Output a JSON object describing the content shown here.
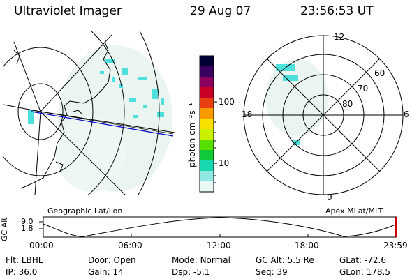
{
  "header": {
    "instrument": "Ultraviolet Imager",
    "date": "29 Aug 07",
    "time": "23:56:53 UT"
  },
  "colorbar": {
    "unit_label": "photon cm⁻²s⁻¹",
    "ticks": [
      "100",
      "10"
    ],
    "colors": [
      "#000033",
      "#3a0060",
      "#8c0060",
      "#c80028",
      "#e84010",
      "#f89a00",
      "#f8e000",
      "#c8f000",
      "#58e000",
      "#10c838",
      "#18d8b0",
      "#90e8e0",
      "#e8f8f4"
    ]
  },
  "map_left": {
    "caption": "Geographic Lat/Lon"
  },
  "polar_right": {
    "caption": "Apex MLat/MLT",
    "mlt_labels": {
      "top": "12",
      "left": "18",
      "right": "6",
      "bottom": "0"
    },
    "lat_labels": [
      "60",
      "70",
      "80"
    ]
  },
  "altitude_plot": {
    "ylabel": "GC Alt",
    "yticks": [
      "9.0",
      "1.8"
    ],
    "xticks": [
      "00:00",
      "06:00",
      "12:00",
      "18:00",
      "23:59"
    ]
  },
  "status": {
    "row1": [
      {
        "label": "Flt:",
        "value": "LBHL"
      },
      {
        "label": "Door:",
        "value": "Open"
      },
      {
        "label": "Mode:",
        "value": "Normal"
      },
      {
        "label": "GC Alt:",
        "value": "5.5 Re"
      },
      {
        "label": "GLat:",
        "value": "-72.6"
      }
    ],
    "row2": [
      {
        "label": "IP:",
        "value": "36.0"
      },
      {
        "label": "Gain:",
        "value": "14"
      },
      {
        "label": "Dsp:",
        "value": "-5.1"
      },
      {
        "label": "Seq:",
        "value": "39"
      },
      {
        "label": "GLon:",
        "value": "178.5"
      }
    ]
  }
}
